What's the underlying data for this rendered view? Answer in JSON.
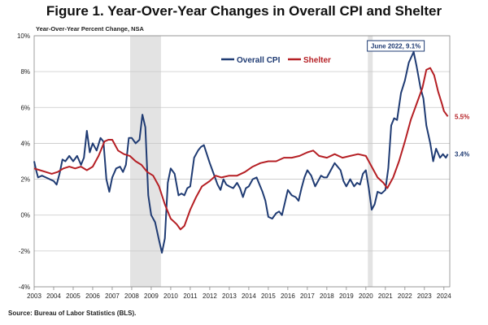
{
  "title": "Figure 1. Year-Over-Year Changes in Overall CPI and Shelter",
  "source": "Source: Bureau of Labor Statistics (BLS).",
  "chart_data": {
    "type": "line",
    "subtitle": "Year-Over-Year Percent Change, NSA",
    "xlabel": "",
    "ylabel": "",
    "x_ticks": [
      "2003",
      "2004",
      "2005",
      "2006",
      "2007",
      "2008",
      "2009",
      "2010",
      "2011",
      "2012",
      "2013",
      "2014",
      "2015",
      "2016",
      "2017",
      "2018",
      "2019",
      "2020",
      "2021",
      "2022",
      "2023",
      "2024"
    ],
    "y_ticks": [
      "-4%",
      "-2%",
      "0%",
      "2%",
      "4%",
      "6%",
      "8%",
      "10%"
    ],
    "xlim": [
      2003,
      2024.3
    ],
    "ylim": [
      -4,
      10
    ],
    "grid": "horizontal",
    "legend": "top-center",
    "recessions": [
      [
        2007.92,
        2009.5
      ],
      [
        2020.1,
        2020.35
      ]
    ],
    "annotation": {
      "text": "June 2022, 9.1%",
      "x": 2022.45,
      "y": 9.1
    },
    "end_labels": [
      {
        "series": "Shelter",
        "text": "5.5%"
      },
      {
        "series": "Overall CPI",
        "text": "3.4%"
      }
    ],
    "series": [
      {
        "name": "Overall CPI",
        "color": "#1f3b73",
        "points": [
          [
            2003.0,
            3.0
          ],
          [
            2003.1,
            2.5
          ],
          [
            2003.2,
            2.1
          ],
          [
            2003.4,
            2.2
          ],
          [
            2003.6,
            2.1
          ],
          [
            2003.8,
            2.0
          ],
          [
            2004.0,
            1.9
          ],
          [
            2004.15,
            1.7
          ],
          [
            2004.3,
            2.3
          ],
          [
            2004.45,
            3.1
          ],
          [
            2004.6,
            3.0
          ],
          [
            2004.8,
            3.3
          ],
          [
            2005.0,
            3.0
          ],
          [
            2005.2,
            3.3
          ],
          [
            2005.4,
            2.8
          ],
          [
            2005.55,
            3.2
          ],
          [
            2005.7,
            4.7
          ],
          [
            2005.85,
            3.5
          ],
          [
            2006.0,
            4.0
          ],
          [
            2006.2,
            3.6
          ],
          [
            2006.4,
            4.3
          ],
          [
            2006.55,
            4.1
          ],
          [
            2006.7,
            2.0
          ],
          [
            2006.85,
            1.3
          ],
          [
            2007.0,
            2.1
          ],
          [
            2007.2,
            2.6
          ],
          [
            2007.4,
            2.7
          ],
          [
            2007.55,
            2.4
          ],
          [
            2007.7,
            2.8
          ],
          [
            2007.85,
            4.3
          ],
          [
            2008.0,
            4.3
          ],
          [
            2008.2,
            4.0
          ],
          [
            2008.4,
            4.2
          ],
          [
            2008.55,
            5.6
          ],
          [
            2008.7,
            4.9
          ],
          [
            2008.85,
            1.1
          ],
          [
            2009.0,
            0.0
          ],
          [
            2009.2,
            -0.4
          ],
          [
            2009.4,
            -1.4
          ],
          [
            2009.55,
            -2.1
          ],
          [
            2009.7,
            -1.3
          ],
          [
            2009.85,
            1.8
          ],
          [
            2010.0,
            2.6
          ],
          [
            2010.2,
            2.3
          ],
          [
            2010.4,
            1.1
          ],
          [
            2010.55,
            1.2
          ],
          [
            2010.7,
            1.1
          ],
          [
            2010.85,
            1.5
          ],
          [
            2011.0,
            1.6
          ],
          [
            2011.2,
            3.2
          ],
          [
            2011.4,
            3.6
          ],
          [
            2011.55,
            3.8
          ],
          [
            2011.7,
            3.9
          ],
          [
            2011.85,
            3.4
          ],
          [
            2012.0,
            2.9
          ],
          [
            2012.2,
            2.3
          ],
          [
            2012.4,
            1.7
          ],
          [
            2012.55,
            1.4
          ],
          [
            2012.7,
            2.0
          ],
          [
            2012.85,
            1.7
          ],
          [
            2013.0,
            1.6
          ],
          [
            2013.2,
            1.5
          ],
          [
            2013.4,
            1.8
          ],
          [
            2013.55,
            1.5
          ],
          [
            2013.7,
            1.0
          ],
          [
            2013.85,
            1.5
          ],
          [
            2014.0,
            1.6
          ],
          [
            2014.2,
            2.0
          ],
          [
            2014.4,
            2.1
          ],
          [
            2014.55,
            1.7
          ],
          [
            2014.7,
            1.3
          ],
          [
            2014.85,
            0.8
          ],
          [
            2015.0,
            -0.1
          ],
          [
            2015.2,
            -0.2
          ],
          [
            2015.4,
            0.1
          ],
          [
            2015.55,
            0.2
          ],
          [
            2015.7,
            0.0
          ],
          [
            2015.85,
            0.7
          ],
          [
            2016.0,
            1.4
          ],
          [
            2016.2,
            1.1
          ],
          [
            2016.4,
            1.0
          ],
          [
            2016.55,
            0.8
          ],
          [
            2016.7,
            1.5
          ],
          [
            2016.85,
            2.1
          ],
          [
            2017.0,
            2.5
          ],
          [
            2017.2,
            2.2
          ],
          [
            2017.4,
            1.6
          ],
          [
            2017.55,
            1.9
          ],
          [
            2017.7,
            2.2
          ],
          [
            2017.85,
            2.1
          ],
          [
            2018.0,
            2.1
          ],
          [
            2018.2,
            2.5
          ],
          [
            2018.4,
            2.9
          ],
          [
            2018.55,
            2.7
          ],
          [
            2018.7,
            2.5
          ],
          [
            2018.85,
            1.9
          ],
          [
            2019.0,
            1.6
          ],
          [
            2019.2,
            2.0
          ],
          [
            2019.4,
            1.6
          ],
          [
            2019.55,
            1.8
          ],
          [
            2019.7,
            1.7
          ],
          [
            2019.85,
            2.3
          ],
          [
            2020.0,
            2.5
          ],
          [
            2020.15,
            1.5
          ],
          [
            2020.3,
            0.3
          ],
          [
            2020.45,
            0.6
          ],
          [
            2020.6,
            1.3
          ],
          [
            2020.8,
            1.2
          ],
          [
            2021.0,
            1.4
          ],
          [
            2021.15,
            2.6
          ],
          [
            2021.3,
            5.0
          ],
          [
            2021.45,
            5.4
          ],
          [
            2021.6,
            5.3
          ],
          [
            2021.8,
            6.8
          ],
          [
            2022.0,
            7.5
          ],
          [
            2022.2,
            8.5
          ],
          [
            2022.45,
            9.1
          ],
          [
            2022.6,
            8.3
          ],
          [
            2022.8,
            7.1
          ],
          [
            2022.95,
            6.5
          ],
          [
            2023.1,
            5.0
          ],
          [
            2023.3,
            4.0
          ],
          [
            2023.45,
            3.0
          ],
          [
            2023.6,
            3.7
          ],
          [
            2023.8,
            3.2
          ],
          [
            2023.95,
            3.4
          ],
          [
            2024.1,
            3.2
          ],
          [
            2024.2,
            3.4
          ]
        ]
      },
      {
        "name": "Shelter",
        "color": "#b51f24",
        "points": [
          [
            2003.0,
            2.6
          ],
          [
            2003.3,
            2.5
          ],
          [
            2003.6,
            2.4
          ],
          [
            2003.9,
            2.3
          ],
          [
            2004.2,
            2.4
          ],
          [
            2004.5,
            2.6
          ],
          [
            2004.8,
            2.7
          ],
          [
            2005.1,
            2.6
          ],
          [
            2005.4,
            2.7
          ],
          [
            2005.7,
            2.5
          ],
          [
            2006.0,
            2.7
          ],
          [
            2006.3,
            3.3
          ],
          [
            2006.6,
            4.1
          ],
          [
            2006.8,
            4.2
          ],
          [
            2007.0,
            4.2
          ],
          [
            2007.3,
            3.6
          ],
          [
            2007.6,
            3.4
          ],
          [
            2007.9,
            3.3
          ],
          [
            2008.2,
            3.0
          ],
          [
            2008.5,
            2.8
          ],
          [
            2008.8,
            2.4
          ],
          [
            2009.1,
            2.2
          ],
          [
            2009.4,
            1.6
          ],
          [
            2009.7,
            0.6
          ],
          [
            2010.0,
            -0.2
          ],
          [
            2010.3,
            -0.5
          ],
          [
            2010.5,
            -0.8
          ],
          [
            2010.7,
            -0.6
          ],
          [
            2011.0,
            0.3
          ],
          [
            2011.3,
            1.0
          ],
          [
            2011.6,
            1.6
          ],
          [
            2012.0,
            1.9
          ],
          [
            2012.3,
            2.2
          ],
          [
            2012.6,
            2.1
          ],
          [
            2013.0,
            2.2
          ],
          [
            2013.4,
            2.2
          ],
          [
            2013.8,
            2.4
          ],
          [
            2014.2,
            2.7
          ],
          [
            2014.6,
            2.9
          ],
          [
            2015.0,
            3.0
          ],
          [
            2015.4,
            3.0
          ],
          [
            2015.8,
            3.2
          ],
          [
            2016.2,
            3.2
          ],
          [
            2016.6,
            3.3
          ],
          [
            2017.0,
            3.5
          ],
          [
            2017.3,
            3.6
          ],
          [
            2017.6,
            3.3
          ],
          [
            2018.0,
            3.2
          ],
          [
            2018.4,
            3.4
          ],
          [
            2018.8,
            3.2
          ],
          [
            2019.2,
            3.3
          ],
          [
            2019.6,
            3.4
          ],
          [
            2020.0,
            3.3
          ],
          [
            2020.3,
            2.7
          ],
          [
            2020.6,
            2.1
          ],
          [
            2020.9,
            1.8
          ],
          [
            2021.1,
            1.5
          ],
          [
            2021.4,
            2.1
          ],
          [
            2021.7,
            3.0
          ],
          [
            2022.0,
            4.1
          ],
          [
            2022.3,
            5.3
          ],
          [
            2022.6,
            6.2
          ],
          [
            2022.9,
            7.1
          ],
          [
            2023.1,
            8.1
          ],
          [
            2023.3,
            8.2
          ],
          [
            2023.5,
            7.8
          ],
          [
            2023.7,
            6.9
          ],
          [
            2023.9,
            6.2
          ],
          [
            2024.0,
            5.8
          ],
          [
            2024.2,
            5.5
          ]
        ]
      }
    ]
  }
}
